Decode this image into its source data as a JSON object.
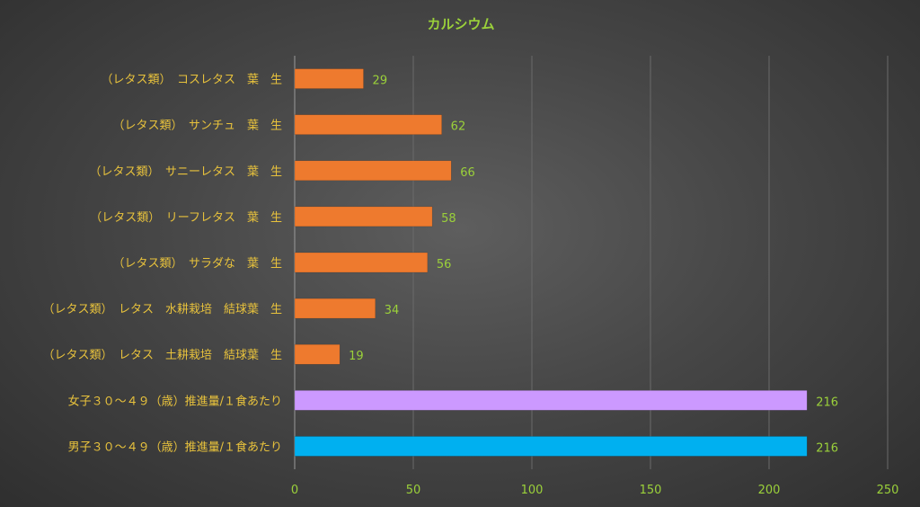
{
  "chart_data": {
    "type": "bar",
    "orientation": "horizontal",
    "title": "カルシウム",
    "xlabel": "",
    "ylabel": "",
    "xlim": [
      0,
      250
    ],
    "ticks": [
      0,
      50,
      100,
      150,
      200,
      250
    ],
    "grid": true,
    "categories": [
      "（レタス類）　コスレタス　葉　生",
      "（レタス類）　サンチュ　葉　生",
      "（レタス類）　サニーレタス　葉　生",
      "（レタス類）　リーフレタス　葉　生",
      "（レタス類）　サラダな　葉　生",
      "（レタス類）　レタス　水耕栽培　結球葉　生",
      "（レタス類）　レタス　土耕栽培　結球葉　生",
      "女子３０～４９（歳）推進量/１食あたり",
      "男子３０～４９（歳）推進量/１食あたり"
    ],
    "values": [
      29,
      62,
      66,
      58,
      56,
      34,
      19,
      216,
      216
    ],
    "value_labels": [
      "29",
      "62",
      "66",
      "58",
      "56",
      "34",
      "19",
      "216",
      "216"
    ],
    "colors": [
      "#ee7a2e",
      "#ee7a2e",
      "#ee7a2e",
      "#ee7a2e",
      "#ee7a2e",
      "#ee7a2e",
      "#ee7a2e",
      "#cc99ff",
      "#00b0f0"
    ]
  }
}
